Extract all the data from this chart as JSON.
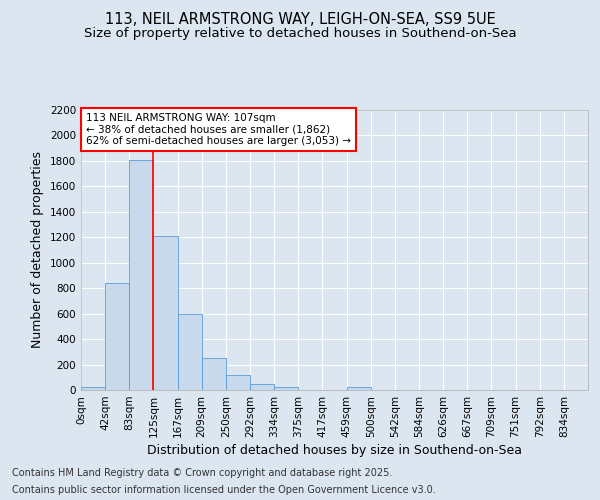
{
  "title_line1": "113, NEIL ARMSTRONG WAY, LEIGH-ON-SEA, SS9 5UE",
  "title_line2": "Size of property relative to detached houses in Southend-on-Sea",
  "xlabel": "Distribution of detached houses by size in Southend-on-Sea",
  "ylabel": "Number of detached properties",
  "bin_labels": [
    "0sqm",
    "42sqm",
    "83sqm",
    "125sqm",
    "167sqm",
    "209sqm",
    "250sqm",
    "292sqm",
    "334sqm",
    "375sqm",
    "417sqm",
    "459sqm",
    "500sqm",
    "542sqm",
    "584sqm",
    "626sqm",
    "667sqm",
    "709sqm",
    "751sqm",
    "792sqm",
    "834sqm"
  ],
  "bar_values": [
    25,
    840,
    1810,
    1210,
    600,
    250,
    120,
    50,
    25,
    0,
    0,
    20,
    0,
    0,
    0,
    0,
    0,
    0,
    0,
    0,
    0
  ],
  "bar_color": "#c9d9ec",
  "bar_edge_color": "#5b9bd5",
  "annotation_text": "113 NEIL ARMSTRONG WAY: 107sqm\n← 38% of detached houses are smaller (1,862)\n62% of semi-detached houses are larger (3,053) →",
  "annotation_box_color": "white",
  "annotation_box_edge_color": "red",
  "vline_color": "red",
  "vline_x": 3.0,
  "ylim": [
    0,
    2200
  ],
  "yticks": [
    0,
    200,
    400,
    600,
    800,
    1000,
    1200,
    1400,
    1600,
    1800,
    2000,
    2200
  ],
  "background_color": "#dce6f1",
  "plot_background_color": "#dce6f1",
  "grid_color": "white",
  "footer_line1": "Contains HM Land Registry data © Crown copyright and database right 2025.",
  "footer_line2": "Contains public sector information licensed under the Open Government Licence v3.0.",
  "title_fontsize": 10.5,
  "subtitle_fontsize": 9.5,
  "axis_label_fontsize": 9,
  "tick_fontsize": 7.5,
  "annot_fontsize": 7.5,
  "footer_fontsize": 7
}
